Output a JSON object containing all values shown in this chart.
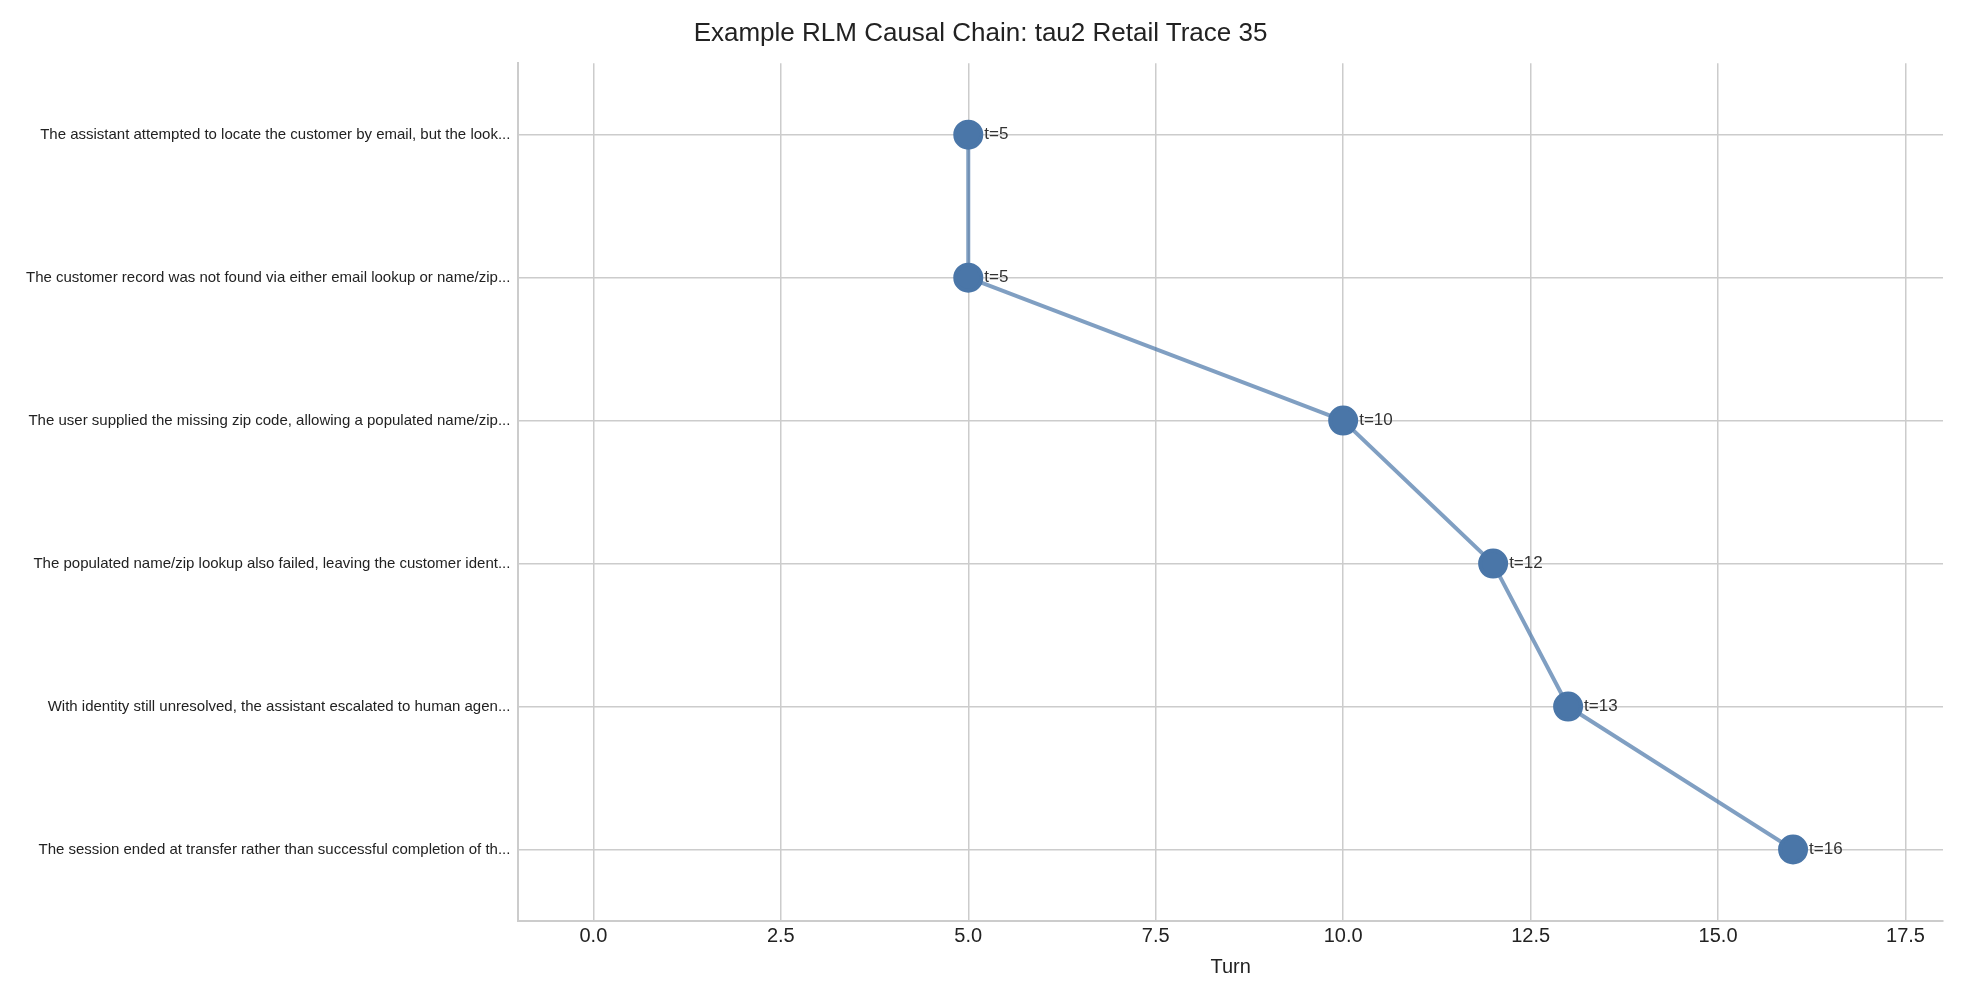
{
  "chart_data": {
    "type": "line",
    "title": "Example RLM Causal Chain: tau2 Retail Trace 35",
    "xlabel": "Turn",
    "orientation": "horizontal",
    "categories": [
      "The assistant attempted to locate the customer by email, but the look...",
      "The customer record was not found via either email lookup or name/zip...",
      "The user supplied the missing zip code, allowing a populated name/zip...",
      "The populated name/zip lookup also failed, leaving the customer ident...",
      "With identity still unresolved, the assistant escalated to human agen...",
      "The session ended at transfer rather than successful completion of th..."
    ],
    "series": [
      {
        "color": "#4a76a8",
        "values": [
          5,
          5,
          10,
          12,
          13,
          16
        ],
        "value_labels": [
          "t=5",
          "t=5",
          "t=10",
          "t=12",
          "t=13",
          "t=16"
        ]
      }
    ],
    "xlim": [
      -1.0,
      18.0
    ],
    "xticks": [
      {
        "value": 0,
        "label": "0.0"
      },
      {
        "value": 2.5,
        "label": "2.5"
      },
      {
        "value": 5,
        "label": "5.0"
      },
      {
        "value": 7.5,
        "label": "7.5"
      },
      {
        "value": 10,
        "label": "10.0"
      },
      {
        "value": 12.5,
        "label": "12.5"
      },
      {
        "value": 15,
        "label": "15.0"
      },
      {
        "value": 17.5,
        "label": "17.5"
      }
    ],
    "grid": true,
    "marker": "circle",
    "line_style": "solid",
    "legend": false
  }
}
